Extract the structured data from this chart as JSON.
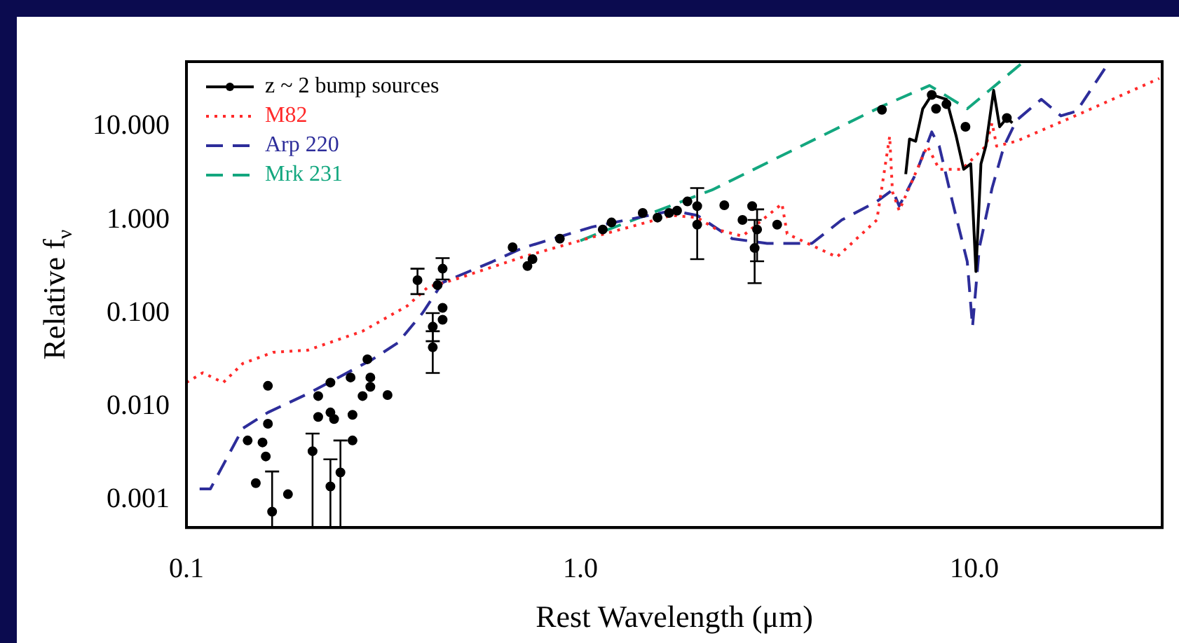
{
  "chart_data": {
    "type": "scatter",
    "xlabel": "Rest Wavelength (μm)",
    "ylabel": "Relative f$_{ν}$",
    "log": "xy",
    "grid": false,
    "legend": "top left",
    "xlim": [
      0.1,
      30
    ],
    "xticks": [
      0.1,
      {
        "value": 1,
        "label": "1.0"
      },
      {
        "value": 10,
        "label": "10.0"
      }
    ],
    "ylim": [
      0.0005,
      50
    ],
    "yticks": [
      0.001,
      {
        "value": 0.01,
        "label": "0.010"
      },
      {
        "value": 0.1,
        "label": "0.100"
      },
      {
        "value": 1,
        "label": "1.000"
      },
      {
        "value": 10,
        "label": "10.000"
      }
    ],
    "series": [
      {
        "name": "z ~ 2 bump sources",
        "type": "scatter",
        "marker": "circle",
        "color": "#000000",
        "x": [
          0.143,
          0.15,
          0.156,
          0.159,
          0.161,
          0.161,
          0.165,
          0.181,
          0.209,
          0.216,
          0.216,
          0.232,
          0.232,
          0.232,
          0.237,
          0.246,
          0.261,
          0.264,
          0.264,
          0.28,
          0.288,
          0.293,
          0.293,
          0.324,
          0.386,
          0.422,
          0.422,
          0.434,
          0.447,
          0.447,
          0.447,
          0.673,
          0.734,
          0.756,
          0.887,
          1.14,
          1.2,
          1.44,
          1.57,
          1.68,
          1.76,
          1.87,
          1.98,
          1.98,
          2.32,
          2.58,
          2.73,
          2.81,
          2.77,
          3.16,
          5.83,
          7.8,
          8.0,
          8.5,
          9.5,
          12.1
        ],
        "values": [
          0.0043,
          0.0015,
          0.0041,
          0.0029,
          0.0065,
          0.0166,
          0.00074,
          0.00114,
          0.0033,
          0.0129,
          0.0077,
          0.018,
          0.0086,
          0.00138,
          0.0073,
          0.00195,
          0.0204,
          0.0043,
          0.0081,
          0.0129,
          0.032,
          0.0204,
          0.0162,
          0.0132,
          0.226,
          0.0716,
          0.043,
          0.2,
          0.3,
          0.114,
          0.085,
          0.51,
          0.32,
          0.38,
          0.63,
          0.79,
          0.94,
          1.19,
          1.06,
          1.19,
          1.26,
          1.58,
          1.41,
          0.89,
          1.44,
          1.0,
          1.41,
          0.79,
          0.5,
          0.89,
          15.2,
          22,
          15.6,
          17.5,
          10,
          12.4
        ],
        "errors": [
          null,
          null,
          null,
          null,
          null,
          null,
          [
            0.0005,
            0.002
          ],
          null,
          [
            0.0005,
            0.0051
          ],
          null,
          null,
          null,
          null,
          [
            0.0005,
            0.0027
          ],
          null,
          [
            0.0005,
            0.0043
          ],
          null,
          null,
          null,
          null,
          null,
          null,
          null,
          null,
          [
            0.16,
            0.3
          ],
          [
            0.05,
            0.1
          ],
          [
            0.0228,
            0.064
          ],
          null,
          [
            0.23,
            0.39
          ],
          null,
          null,
          null,
          null,
          null,
          null,
          null,
          null,
          null,
          null,
          null,
          null,
          null,
          null,
          [
            0.38,
            2.2
          ],
          null,
          null,
          null,
          [
            0.36,
            1.3
          ],
          [
            0.21,
            1.0
          ],
          null,
          null,
          null,
          null,
          null,
          null,
          null
        ]
      },
      {
        "type": "line",
        "marker": "none",
        "line_style": "solid",
        "color": "#000000",
        "x": [
          6.7,
          6.85,
          7.1,
          7.4,
          7.8,
          8.5,
          9.0,
          9.4,
          9.8,
          10.1,
          10.4,
          10.7,
          11.2,
          11.6,
          12.1,
          12.5
        ],
        "values": [
          3.1,
          7.4,
          7.0,
          15.6,
          22,
          19.7,
          7.9,
          3.5,
          4.0,
          0.28,
          4.0,
          6.2,
          24.6,
          10,
          12.4,
          11
        ]
      },
      {
        "name": "M82",
        "type": "line",
        "marker": "none",
        "line_style": "dotted",
        "color": "#ff2a2a",
        "x": [
          0.1,
          0.11,
          0.124,
          0.139,
          0.166,
          0.203,
          0.28,
          0.364,
          0.41,
          0.474,
          0.713,
          1.04,
          1.71,
          1.98,
          2.22,
          2.58,
          3.25,
          3.35,
          4.48,
          5.66,
          6.1,
          6.2,
          6.45,
          7.6,
          8.15,
          9.3,
          10.7,
          11.1,
          11.4,
          12.8,
          18.7,
          29.5
        ],
        "values": [
          0.018,
          0.0229,
          0.018,
          0.0288,
          0.038,
          0.04,
          0.064,
          0.12,
          0.19,
          0.226,
          0.4,
          0.63,
          1.12,
          1.06,
          0.79,
          0.67,
          1.49,
          0.71,
          0.4,
          1.0,
          7.9,
          2.0,
          1.26,
          6.2,
          3.5,
          3.5,
          6.2,
          11,
          6.2,
          7.0,
          14,
          33
        ]
      },
      {
        "name": "Arp 220",
        "type": "line",
        "marker": "none",
        "line_style": "dashed",
        "color": "#2d2d9a",
        "x": [
          0.108,
          0.115,
          0.139,
          0.161,
          0.203,
          0.297,
          0.344,
          0.398,
          0.447,
          0.598,
          0.713,
          1.07,
          1.71,
          1.98,
          2.43,
          2.98,
          3.87,
          4.61,
          5.66,
          6.2,
          6.45,
          7.1,
          7.8,
          8.15,
          8.8,
          9.6,
          9.9,
          10.3,
          11.1,
          11.9,
          12.8,
          14.8,
          16.6,
          18.2,
          21.6
        ],
        "values": [
          0.0013,
          0.0013,
          0.0058,
          0.0086,
          0.0136,
          0.032,
          0.048,
          0.101,
          0.213,
          0.357,
          0.5,
          0.84,
          1.26,
          1.12,
          0.63,
          0.56,
          0.56,
          1.0,
          1.58,
          2.1,
          1.41,
          3.1,
          8.8,
          6.2,
          1.58,
          0.357,
          0.0716,
          0.5,
          2.2,
          6.2,
          11.7,
          19.7,
          13.1,
          14.7,
          44
        ]
      },
      {
        "name": "Mrk 231",
        "type": "line",
        "marker": "none",
        "line_style": "dashed",
        "color": "#13a77f",
        "x": [
          1.0,
          1.14,
          2.16,
          5.83,
          7.7,
          9.6,
          11.1,
          13.2
        ],
        "values": [
          0.6,
          0.75,
          2.1,
          16.6,
          27.7,
          15.6,
          26,
          48
        ]
      }
    ]
  }
}
